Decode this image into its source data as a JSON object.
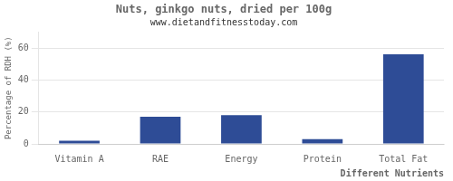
{
  "chart_data": {
    "type": "bar",
    "title": "Nuts, ginkgo nuts, dried per 100g",
    "subtitle": "www.dietandfitnesstoday.com",
    "xlabel": "Different Nutrients",
    "ylabel": "Percentage of RDH (%)",
    "categories": [
      "Vitamin A",
      "RAE",
      "Energy",
      "Protein",
      "Total Fat"
    ],
    "values": [
      2,
      17,
      18,
      3,
      56
    ],
    "color": "#2e4c96",
    "ylim": [
      0,
      70
    ],
    "yticks": [
      0,
      20,
      40,
      60
    ],
    "grid": true
  }
}
